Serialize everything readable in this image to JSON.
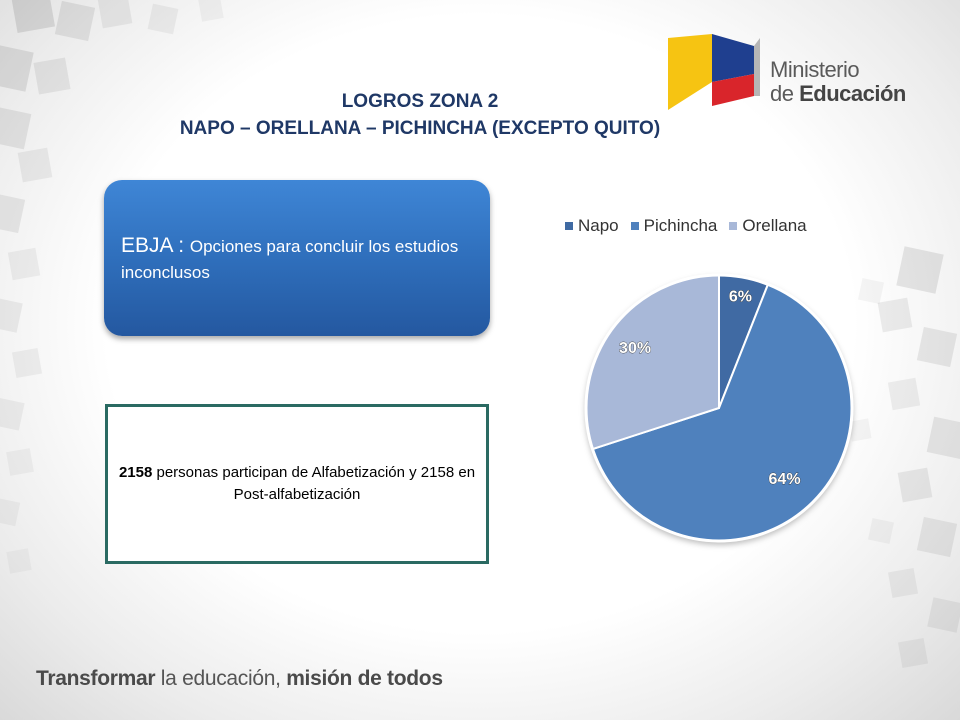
{
  "title": {
    "line1": "LOGROS ZONA 2",
    "line2": "NAPO – ORELLANA – PICHINCHA (EXCEPTO QUITO)"
  },
  "logo": {
    "line1": "Ministerio",
    "line2_prefix": "de ",
    "line2_bold": "Educación"
  },
  "ebja": {
    "strong": "EBJA : ",
    "rest": "Opciones para concluir los estudios  inconclusos"
  },
  "info": {
    "number": "2158",
    "text1": " personas participan de Alfabetización y 2158 en Post-alfabetización"
  },
  "footer": {
    "part1": "Transformar",
    "part2": " la educación, ",
    "part3": "misión de todos"
  },
  "colors": {
    "title": "#1f3866",
    "napo": "#3f6aa3",
    "pichincha": "#4f81bd",
    "orellana": "#a8b8d8"
  },
  "chart_data": {
    "type": "pie",
    "categories": [
      "Napo",
      "Pichincha",
      "Orellana"
    ],
    "values": [
      6,
      64,
      30
    ],
    "labels": [
      "6%",
      "64%",
      "30%"
    ],
    "legend": "top",
    "title": ""
  }
}
